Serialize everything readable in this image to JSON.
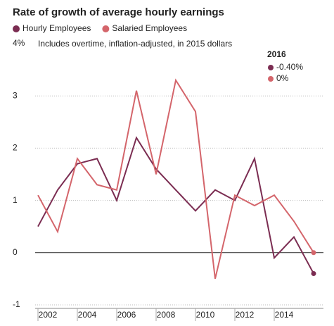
{
  "chart_data": {
    "type": "line",
    "title": "Rate of growth of average hourly earnings",
    "note": "Includes overtime, inflation-adjusted, in 2015 dollars",
    "annotation_title": "2016",
    "x": [
      2002,
      2003,
      2004,
      2005,
      2006,
      2007,
      2008,
      2009,
      2010,
      2011,
      2012,
      2013,
      2014,
      2015,
      2016
    ],
    "series": [
      {
        "name": "Hourly Employees",
        "color": "#7b2d52",
        "values": [
          0.5,
          1.2,
          1.7,
          1.8,
          1.0,
          2.2,
          1.6,
          1.2,
          0.8,
          1.2,
          1.0,
          1.8,
          -0.1,
          0.3,
          -0.4
        ],
        "value_labels": [
          null,
          null,
          null,
          null,
          null,
          null,
          null,
          null,
          null,
          null,
          null,
          null,
          null,
          null,
          "-0.40%"
        ]
      },
      {
        "name": "Salaried Employees",
        "color": "#d4656b",
        "values": [
          1.1,
          0.4,
          1.8,
          1.3,
          1.2,
          3.1,
          1.5,
          3.3,
          2.7,
          -0.5,
          1.1,
          0.9,
          1.1,
          0.6,
          0
        ],
        "value_labels": [
          null,
          null,
          null,
          null,
          null,
          null,
          null,
          null,
          null,
          null,
          null,
          null,
          null,
          null,
          "0%"
        ]
      }
    ],
    "xlim": [
      2001.5,
      2016.5
    ],
    "xticks": [
      2002,
      2004,
      2006,
      2008,
      2010,
      2012,
      2014
    ],
    "ylim": [
      -1,
      4
    ],
    "yticks": [
      -1,
      0,
      1,
      2,
      3,
      {
        "value": 4,
        "label": "4%"
      }
    ],
    "grid": true
  }
}
